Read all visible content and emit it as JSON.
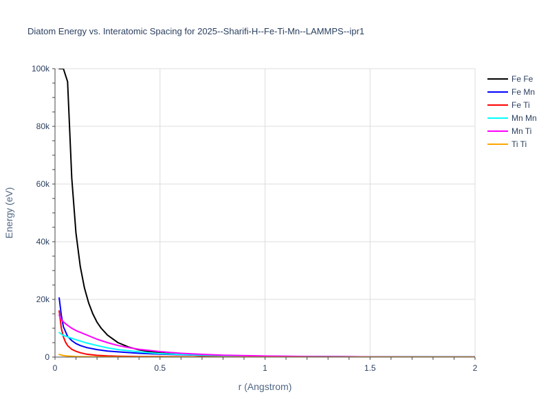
{
  "chart_data": {
    "type": "line",
    "title": "Diatom Energy vs. Interatomic Spacing for 2025--Sharifi-H--Fe-Ti-Mn--LAMMPS--ipr1",
    "xlabel": "r (Angstrom)",
    "ylabel": "Energy (eV)",
    "xlim": [
      0,
      2
    ],
    "ylim": [
      0,
      100000
    ],
    "xticks": [
      0,
      0.5,
      1,
      1.5,
      2
    ],
    "xtick_labels": [
      "0",
      "0.5",
      "1",
      "1.5",
      "2"
    ],
    "yticks": [
      0,
      20000,
      40000,
      60000,
      80000,
      100000
    ],
    "ytick_labels": [
      "0",
      "20k",
      "40k",
      "60k",
      "80k",
      "100k"
    ],
    "grid": true,
    "legend_position": "right",
    "series": [
      {
        "name": "Fe Fe",
        "color": "#000000",
        "x": [
          0.02,
          0.04,
          0.06,
          0.08,
          0.1,
          0.12,
          0.14,
          0.16,
          0.18,
          0.2,
          0.22,
          0.25,
          0.3,
          0.35,
          0.4,
          0.45,
          0.5,
          0.6,
          0.7,
          0.8,
          1.0,
          1.2,
          1.5,
          2.0
        ],
        "y": [
          100000,
          100000,
          95500,
          62000,
          43000,
          31500,
          24000,
          18800,
          15000,
          12100,
          10000,
          7600,
          5000,
          3500,
          2500,
          1900,
          1400,
          900,
          600,
          400,
          200,
          100,
          50,
          20
        ]
      },
      {
        "name": "Fe Mn",
        "color": "#0000ff",
        "x": [
          0.02,
          0.03,
          0.04,
          0.06,
          0.08,
          0.1,
          0.12,
          0.15,
          0.2,
          0.25,
          0.3,
          0.4,
          0.5,
          0.6,
          0.8,
          1.0,
          1.5,
          2.0
        ],
        "y": [
          20500,
          14500,
          10500,
          7200,
          5700,
          4700,
          4000,
          3300,
          2600,
          2100,
          1800,
          1300,
          1000,
          800,
          500,
          300,
          100,
          30
        ]
      },
      {
        "name": "Fe Ti",
        "color": "#ff0000",
        "x": [
          0.02,
          0.03,
          0.04,
          0.05,
          0.06,
          0.08,
          0.1,
          0.12,
          0.15,
          0.2,
          0.25,
          0.3,
          0.4,
          0.5,
          0.7,
          1.0,
          1.5,
          2.0
        ],
        "y": [
          16000,
          10000,
          7000,
          5200,
          4000,
          2700,
          2000,
          1500,
          1000,
          600,
          400,
          300,
          200,
          150,
          100,
          60,
          30,
          10
        ]
      },
      {
        "name": "Mn Mn",
        "color": "#00ffff",
        "x": [
          0.02,
          0.04,
          0.06,
          0.08,
          0.1,
          0.15,
          0.2,
          0.25,
          0.3,
          0.4,
          0.5,
          0.6,
          0.8,
          1.0,
          1.5,
          2.0
        ],
        "y": [
          8500,
          7500,
          7000,
          6500,
          6000,
          4900,
          4000,
          3200,
          2600,
          1800,
          1200,
          900,
          500,
          300,
          100,
          30
        ]
      },
      {
        "name": "Mn Ti",
        "color": "#ff00ff",
        "x": [
          0.02,
          0.03,
          0.04,
          0.06,
          0.08,
          0.1,
          0.15,
          0.2,
          0.25,
          0.3,
          0.35,
          0.4,
          0.5,
          0.6,
          0.7,
          0.8,
          1.0,
          1.2,
          1.5,
          2.0
        ],
        "y": [
          14500,
          13000,
          12200,
          11000,
          10000,
          9200,
          7700,
          6200,
          5000,
          4000,
          3300,
          2700,
          1900,
          1300,
          950,
          650,
          350,
          200,
          80,
          20
        ]
      },
      {
        "name": "Ti Ti",
        "color": "#ffa500",
        "x": [
          0.02,
          0.04,
          0.06,
          0.1,
          0.15,
          0.2,
          0.3,
          0.5,
          1.0,
          2.0
        ],
        "y": [
          900,
          500,
          350,
          200,
          120,
          80,
          40,
          20,
          5,
          0
        ]
      }
    ]
  }
}
